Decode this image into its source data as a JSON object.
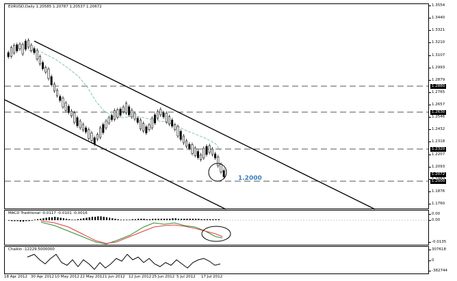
{
  "main_chart": {
    "header": "EURUSD,Daily  1.20585 1.20787 1.20537 1.20672",
    "price_ticks": [
      "1.3554",
      "1.3440",
      "1.3321",
      "1.3210",
      "1.3107",
      "1.2993",
      "1.2879",
      "1.2765",
      "1.2657",
      "1.2546",
      "1.2432",
      "1.2318",
      "1.2207",
      "1.2093",
      "1.1983",
      "1.1876",
      "1.1760"
    ],
    "price_tags": [
      "1.2880",
      "1.2630",
      "1.2320",
      "1.2072",
      "1.2000"
    ],
    "annotation": "1.2000",
    "colors": {
      "grid_dashed": "#555555",
      "moving_average": "#7fc7b0",
      "channel": "#000000"
    }
  },
  "macd": {
    "header": "MACD Traditional -0.0117 -0.0101 -0.0016",
    "ticks": [
      "0.00",
      "0.00",
      "-0.0135"
    ],
    "colors": {
      "macd": "#2e8b2e",
      "signal": "#e23a3a",
      "histogram": "#000000"
    }
  },
  "chaikin": {
    "header": "Chaikin -12229.5000000",
    "ticks": [
      "307618",
      "0",
      "-382744"
    ]
  },
  "x_axis": [
    "18 Apr 2012",
    "30 Apr 2012",
    "10 May 2012",
    "22 May 2012",
    "1 Jun 2012",
    "12 Jun 2012",
    "25 Jun 2012",
    "5 Jul 2012",
    "17 Jul 2012"
  ]
}
